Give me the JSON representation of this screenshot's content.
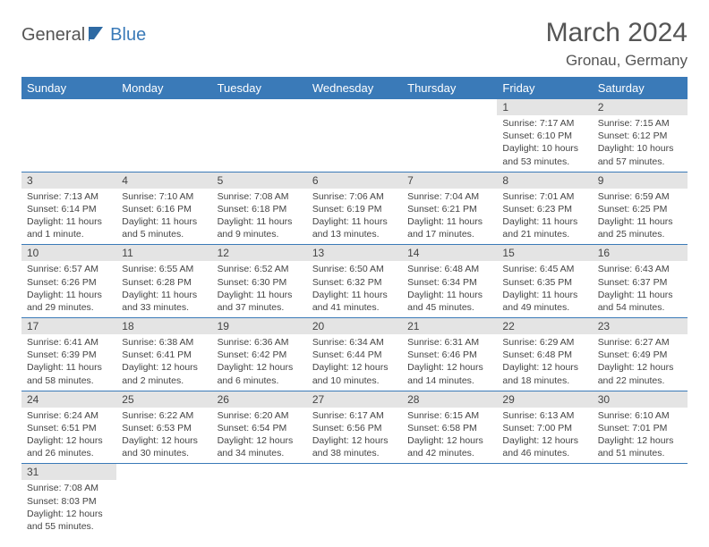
{
  "logo": {
    "part1": "General",
    "part2": "Blue"
  },
  "title": "March 2024",
  "location": "Gronau, Germany",
  "colors": {
    "header_bg": "#3a7ab8",
    "header_fg": "#ffffff",
    "daynum_bg": "#e4e4e4",
    "text": "#444444",
    "row_border": "#3a7ab8"
  },
  "weekdays": [
    "Sunday",
    "Monday",
    "Tuesday",
    "Wednesday",
    "Thursday",
    "Friday",
    "Saturday"
  ],
  "weeks": [
    [
      null,
      null,
      null,
      null,
      null,
      {
        "n": "1",
        "sunrise": "Sunrise: 7:17 AM",
        "sunset": "Sunset: 6:10 PM",
        "daylight": "Daylight: 10 hours and 53 minutes."
      },
      {
        "n": "2",
        "sunrise": "Sunrise: 7:15 AM",
        "sunset": "Sunset: 6:12 PM",
        "daylight": "Daylight: 10 hours and 57 minutes."
      }
    ],
    [
      {
        "n": "3",
        "sunrise": "Sunrise: 7:13 AM",
        "sunset": "Sunset: 6:14 PM",
        "daylight": "Daylight: 11 hours and 1 minute."
      },
      {
        "n": "4",
        "sunrise": "Sunrise: 7:10 AM",
        "sunset": "Sunset: 6:16 PM",
        "daylight": "Daylight: 11 hours and 5 minutes."
      },
      {
        "n": "5",
        "sunrise": "Sunrise: 7:08 AM",
        "sunset": "Sunset: 6:18 PM",
        "daylight": "Daylight: 11 hours and 9 minutes."
      },
      {
        "n": "6",
        "sunrise": "Sunrise: 7:06 AM",
        "sunset": "Sunset: 6:19 PM",
        "daylight": "Daylight: 11 hours and 13 minutes."
      },
      {
        "n": "7",
        "sunrise": "Sunrise: 7:04 AM",
        "sunset": "Sunset: 6:21 PM",
        "daylight": "Daylight: 11 hours and 17 minutes."
      },
      {
        "n": "8",
        "sunrise": "Sunrise: 7:01 AM",
        "sunset": "Sunset: 6:23 PM",
        "daylight": "Daylight: 11 hours and 21 minutes."
      },
      {
        "n": "9",
        "sunrise": "Sunrise: 6:59 AM",
        "sunset": "Sunset: 6:25 PM",
        "daylight": "Daylight: 11 hours and 25 minutes."
      }
    ],
    [
      {
        "n": "10",
        "sunrise": "Sunrise: 6:57 AM",
        "sunset": "Sunset: 6:26 PM",
        "daylight": "Daylight: 11 hours and 29 minutes."
      },
      {
        "n": "11",
        "sunrise": "Sunrise: 6:55 AM",
        "sunset": "Sunset: 6:28 PM",
        "daylight": "Daylight: 11 hours and 33 minutes."
      },
      {
        "n": "12",
        "sunrise": "Sunrise: 6:52 AM",
        "sunset": "Sunset: 6:30 PM",
        "daylight": "Daylight: 11 hours and 37 minutes."
      },
      {
        "n": "13",
        "sunrise": "Sunrise: 6:50 AM",
        "sunset": "Sunset: 6:32 PM",
        "daylight": "Daylight: 11 hours and 41 minutes."
      },
      {
        "n": "14",
        "sunrise": "Sunrise: 6:48 AM",
        "sunset": "Sunset: 6:34 PM",
        "daylight": "Daylight: 11 hours and 45 minutes."
      },
      {
        "n": "15",
        "sunrise": "Sunrise: 6:45 AM",
        "sunset": "Sunset: 6:35 PM",
        "daylight": "Daylight: 11 hours and 49 minutes."
      },
      {
        "n": "16",
        "sunrise": "Sunrise: 6:43 AM",
        "sunset": "Sunset: 6:37 PM",
        "daylight": "Daylight: 11 hours and 54 minutes."
      }
    ],
    [
      {
        "n": "17",
        "sunrise": "Sunrise: 6:41 AM",
        "sunset": "Sunset: 6:39 PM",
        "daylight": "Daylight: 11 hours and 58 minutes."
      },
      {
        "n": "18",
        "sunrise": "Sunrise: 6:38 AM",
        "sunset": "Sunset: 6:41 PM",
        "daylight": "Daylight: 12 hours and 2 minutes."
      },
      {
        "n": "19",
        "sunrise": "Sunrise: 6:36 AM",
        "sunset": "Sunset: 6:42 PM",
        "daylight": "Daylight: 12 hours and 6 minutes."
      },
      {
        "n": "20",
        "sunrise": "Sunrise: 6:34 AM",
        "sunset": "Sunset: 6:44 PM",
        "daylight": "Daylight: 12 hours and 10 minutes."
      },
      {
        "n": "21",
        "sunrise": "Sunrise: 6:31 AM",
        "sunset": "Sunset: 6:46 PM",
        "daylight": "Daylight: 12 hours and 14 minutes."
      },
      {
        "n": "22",
        "sunrise": "Sunrise: 6:29 AM",
        "sunset": "Sunset: 6:48 PM",
        "daylight": "Daylight: 12 hours and 18 minutes."
      },
      {
        "n": "23",
        "sunrise": "Sunrise: 6:27 AM",
        "sunset": "Sunset: 6:49 PM",
        "daylight": "Daylight: 12 hours and 22 minutes."
      }
    ],
    [
      {
        "n": "24",
        "sunrise": "Sunrise: 6:24 AM",
        "sunset": "Sunset: 6:51 PM",
        "daylight": "Daylight: 12 hours and 26 minutes."
      },
      {
        "n": "25",
        "sunrise": "Sunrise: 6:22 AM",
        "sunset": "Sunset: 6:53 PM",
        "daylight": "Daylight: 12 hours and 30 minutes."
      },
      {
        "n": "26",
        "sunrise": "Sunrise: 6:20 AM",
        "sunset": "Sunset: 6:54 PM",
        "daylight": "Daylight: 12 hours and 34 minutes."
      },
      {
        "n": "27",
        "sunrise": "Sunrise: 6:17 AM",
        "sunset": "Sunset: 6:56 PM",
        "daylight": "Daylight: 12 hours and 38 minutes."
      },
      {
        "n": "28",
        "sunrise": "Sunrise: 6:15 AM",
        "sunset": "Sunset: 6:58 PM",
        "daylight": "Daylight: 12 hours and 42 minutes."
      },
      {
        "n": "29",
        "sunrise": "Sunrise: 6:13 AM",
        "sunset": "Sunset: 7:00 PM",
        "daylight": "Daylight: 12 hours and 46 minutes."
      },
      {
        "n": "30",
        "sunrise": "Sunrise: 6:10 AM",
        "sunset": "Sunset: 7:01 PM",
        "daylight": "Daylight: 12 hours and 51 minutes."
      }
    ],
    [
      {
        "n": "31",
        "sunrise": "Sunrise: 7:08 AM",
        "sunset": "Sunset: 8:03 PM",
        "daylight": "Daylight: 12 hours and 55 minutes."
      },
      null,
      null,
      null,
      null,
      null,
      null
    ]
  ]
}
